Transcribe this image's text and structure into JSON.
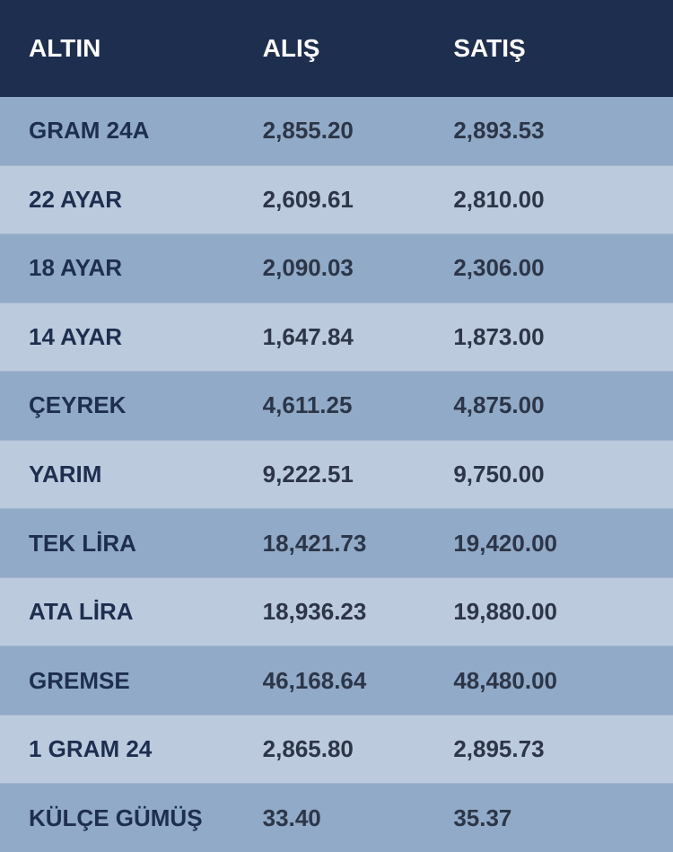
{
  "table": {
    "type": "table",
    "header_background": "#1e2e4f",
    "header_text_color": "#ffffff",
    "row_odd_background": "#91aac8",
    "row_even_background": "#bbcadd",
    "row_separator_color": "#a4b6cf",
    "name_text_color": "#1e2e4f",
    "value_text_color": "#2c3648",
    "header_font_size": 28,
    "cell_font_size": 26,
    "columns": [
      {
        "key": "name",
        "label": "ALTIN"
      },
      {
        "key": "buy",
        "label": "ALIŞ"
      },
      {
        "key": "sell",
        "label": "SATIŞ"
      }
    ],
    "rows": [
      {
        "name": "GRAM 24A",
        "buy": "2,855.20",
        "sell": "2,893.53"
      },
      {
        "name": "22 AYAR",
        "buy": "2,609.61",
        "sell": "2,810.00"
      },
      {
        "name": "18 AYAR",
        "buy": "2,090.03",
        "sell": "2,306.00"
      },
      {
        "name": "14 AYAR",
        "buy": "1,647.84",
        "sell": "1,873.00"
      },
      {
        "name": "ÇEYREK",
        "buy": "4,611.25",
        "sell": "4,875.00"
      },
      {
        "name": "YARIM",
        "buy": "9,222.51",
        "sell": "9,750.00"
      },
      {
        "name": "TEK LİRA",
        "buy": "18,421.73",
        "sell": "19,420.00"
      },
      {
        "name": "ATA LİRA",
        "buy": "18,936.23",
        "sell": "19,880.00"
      },
      {
        "name": "GREMSE",
        "buy": "46,168.64",
        "sell": "48,480.00"
      },
      {
        "name": "1 GRAM 24",
        "buy": "2,865.80",
        "sell": "2,895.73"
      },
      {
        "name": "KÜLÇE GÜMÜŞ",
        "buy": "33.40",
        "sell": "35.37"
      }
    ]
  }
}
